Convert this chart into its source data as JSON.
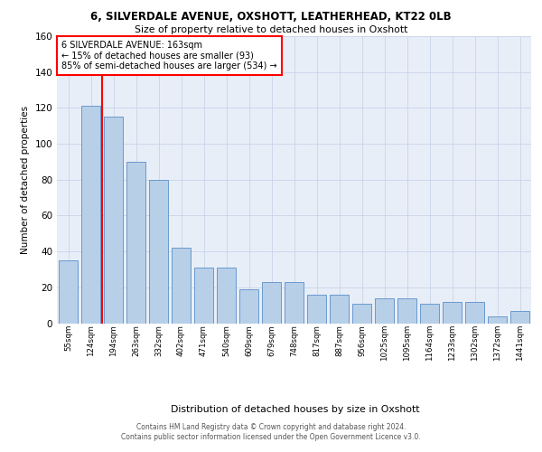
{
  "title1": "6, SILVERDALE AVENUE, OXSHOTT, LEATHERHEAD, KT22 0LB",
  "title2": "Size of property relative to detached houses in Oxshott",
  "xlabel": "Distribution of detached houses by size in Oxshott",
  "ylabel": "Number of detached properties",
  "categories": [
    "55sqm",
    "124sqm",
    "194sqm",
    "263sqm",
    "332sqm",
    "402sqm",
    "471sqm",
    "540sqm",
    "609sqm",
    "679sqm",
    "748sqm",
    "817sqm",
    "887sqm",
    "956sqm",
    "1025sqm",
    "1095sqm",
    "1164sqm",
    "1233sqm",
    "1302sqm",
    "1372sqm",
    "1441sqm"
  ],
  "values": [
    35,
    121,
    115,
    90,
    80,
    42,
    31,
    31,
    19,
    23,
    23,
    16,
    16,
    11,
    14,
    14,
    11,
    12,
    12,
    4,
    7
  ],
  "bar_color": "#b8cfe8",
  "bar_edge_color": "#5b8fc9",
  "annotation_lines": [
    "6 SILVERDALE AVENUE: 163sqm",
    "← 15% of detached houses are smaller (93)",
    "85% of semi-detached houses are larger (534) →"
  ],
  "vline_color": "red",
  "vline_x": 1.5,
  "ylim": [
    0,
    160
  ],
  "yticks": [
    0,
    20,
    40,
    60,
    80,
    100,
    120,
    140,
    160
  ],
  "grid_color": "#c8d4e8",
  "background_color": "#e8eef8",
  "footer_line1": "Contains HM Land Registry data © Crown copyright and database right 2024.",
  "footer_line2": "Contains public sector information licensed under the Open Government Licence v3.0."
}
